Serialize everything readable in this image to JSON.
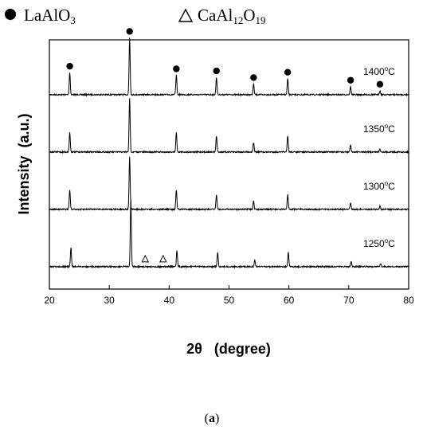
{
  "legend": [
    {
      "marker": "filled-circle",
      "base": "LaAlO",
      "sub": "3",
      "rest": "",
      "sub2": ""
    },
    {
      "marker": "open-triangle",
      "base": "CaAl",
      "sub": "12",
      "rest": "O",
      "sub2": "19"
    }
  ],
  "caption": {
    "open": "(",
    "label": "a",
    "close": ")"
  },
  "chart_data": {
    "type": "line",
    "xlabel": "2θ   (degree)",
    "ylabel": "Intensity  (a.u.)",
    "xlim": [
      20,
      80
    ],
    "xticks": [
      "20",
      "30",
      "40",
      "50",
      "60",
      "70",
      "80"
    ],
    "y_ticks_labeled": false,
    "grid": false,
    "legend_position": "top",
    "line_color": "#000000",
    "series": [
      {
        "name": "1400°C",
        "temp": "1400",
        "unit": "C",
        "baseline_frac": 0.22,
        "peaks": [
          {
            "x": 23.4,
            "h": 0.33,
            "marker": "LaAlO3"
          },
          {
            "x": 33.4,
            "h": 0.85,
            "marker": "LaAlO3"
          },
          {
            "x": 41.2,
            "h": 0.29,
            "marker": "LaAlO3"
          },
          {
            "x": 47.9,
            "h": 0.26,
            "marker": "LaAlO3"
          },
          {
            "x": 54.1,
            "h": 0.16,
            "marker": "LaAlO3"
          },
          {
            "x": 59.8,
            "h": 0.24,
            "marker": "LaAlO3"
          },
          {
            "x": 70.3,
            "h": 0.12,
            "marker": "LaAlO3"
          },
          {
            "x": 75.2,
            "h": 0.06,
            "marker": "LaAlO3"
          }
        ]
      },
      {
        "name": "1350°C",
        "temp": "1350",
        "unit": "C",
        "baseline_frac": 0.45,
        "peaks": [
          {
            "x": 23.4,
            "h": 0.29
          },
          {
            "x": 33.4,
            "h": 0.8
          },
          {
            "x": 41.2,
            "h": 0.29
          },
          {
            "x": 47.9,
            "h": 0.24
          },
          {
            "x": 54.1,
            "h": 0.14
          },
          {
            "x": 59.8,
            "h": 0.24
          },
          {
            "x": 70.3,
            "h": 0.1
          },
          {
            "x": 75.2,
            "h": 0.05
          }
        ]
      },
      {
        "name": "1300°C",
        "temp": "1300",
        "unit": "C",
        "baseline_frac": 0.68,
        "peaks": [
          {
            "x": 23.4,
            "h": 0.29
          },
          {
            "x": 33.4,
            "h": 0.78
          },
          {
            "x": 41.2,
            "h": 0.29
          },
          {
            "x": 47.9,
            "h": 0.22
          },
          {
            "x": 54.1,
            "h": 0.12
          },
          {
            "x": 59.8,
            "h": 0.22
          },
          {
            "x": 70.3,
            "h": 0.1
          },
          {
            "x": 75.2,
            "h": 0.05
          }
        ]
      },
      {
        "name": "1250°C",
        "temp": "1250",
        "unit": "C",
        "baseline_frac": 0.91,
        "peaks": [
          {
            "x": 23.6,
            "h": 0.28
          },
          {
            "x": 33.6,
            "h": 1.0
          },
          {
            "x": 41.3,
            "h": 0.24
          },
          {
            "x": 48.1,
            "h": 0.22
          },
          {
            "x": 54.3,
            "h": 0.1
          },
          {
            "x": 59.9,
            "h": 0.21
          },
          {
            "x": 70.4,
            "h": 0.08
          },
          {
            "x": 75.3,
            "h": 0.04
          },
          {
            "x": 36.0,
            "h": 0.0,
            "marker": "CaAl12O19"
          },
          {
            "x": 39.0,
            "h": 0.0,
            "marker": "CaAl12O19"
          }
        ]
      }
    ]
  }
}
